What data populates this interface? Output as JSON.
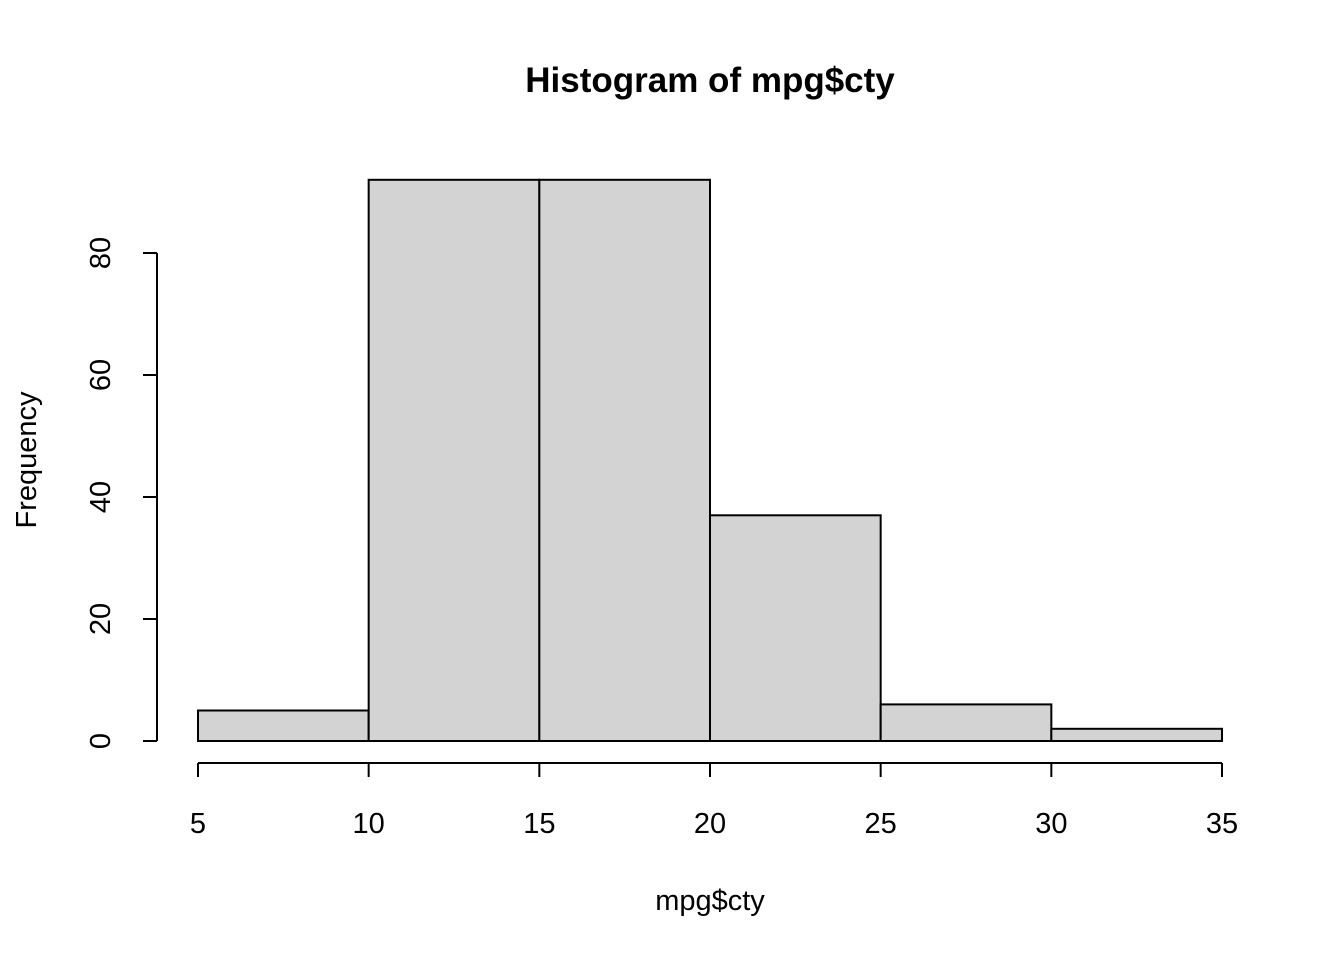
{
  "chart_data": {
    "type": "histogram",
    "title": "Histogram of mpg$cty",
    "x_label": "mpg$cty",
    "y_label": "Frequency",
    "bins": [
      5,
      10,
      15,
      20,
      25,
      30,
      35
    ],
    "values": [
      5,
      92,
      92,
      37,
      6,
      2
    ],
    "color": "#d3d3d3",
    "xlim": [
      5,
      35
    ],
    "xticks": [
      5,
      10,
      15,
      20,
      25,
      30,
      35
    ],
    "ylim": [
      0,
      92
    ],
    "yticks": [
      0,
      20,
      40,
      60,
      80
    ],
    "grid": false
  }
}
